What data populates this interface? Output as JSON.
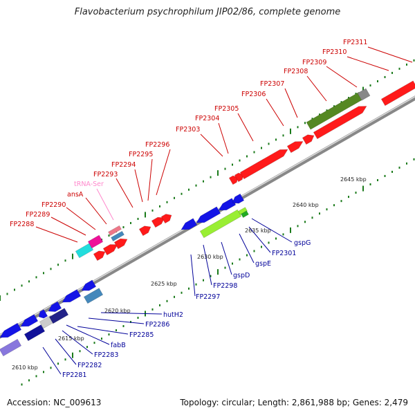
{
  "title": "Flavobacterium psychrophilum JIP02/86, complete genome",
  "footer": {
    "accession": "Accession: NC_009613",
    "summary": "Topology: circular; Length: 2,861,988 bp; Genes: 2,479"
  },
  "colors": {
    "top_strand": "#ff1a1a",
    "bottom_strand": "#1414e6",
    "backbone": "#999999",
    "tick": "#1a7a1a",
    "trna": "#ff88cc",
    "label_top": "#cc0000",
    "label_bottom": "#000099"
  },
  "scale_labels": [
    "2610 kbp",
    "2615 kbp",
    "2620 kbp",
    "2625 kbp",
    "2630 kbp",
    "2635 kbp",
    "2640 kbp",
    "2645 kbp"
  ],
  "top_labels": [
    {
      "text": "FP2288",
      "color": "#cc0000"
    },
    {
      "text": "FP2289",
      "color": "#cc0000"
    },
    {
      "text": "FP2290",
      "color": "#cc0000"
    },
    {
      "text": "ansA",
      "color": "#cc0000"
    },
    {
      "text": "tRNA-Ser",
      "color": "#ff88cc"
    },
    {
      "text": "FP2293",
      "color": "#cc0000"
    },
    {
      "text": "FP2294",
      "color": "#cc0000"
    },
    {
      "text": "FP2295",
      "color": "#cc0000"
    },
    {
      "text": "FP2296",
      "color": "#cc0000"
    },
    {
      "text": "FP2303",
      "color": "#cc0000"
    },
    {
      "text": "FP2304",
      "color": "#cc0000"
    },
    {
      "text": "FP2305",
      "color": "#cc0000"
    },
    {
      "text": "FP2306",
      "color": "#cc0000"
    },
    {
      "text": "FP2307",
      "color": "#cc0000"
    },
    {
      "text": "FP2308",
      "color": "#cc0000"
    },
    {
      "text": "FP2309",
      "color": "#cc0000"
    },
    {
      "text": "FP2310",
      "color": "#cc0000"
    },
    {
      "text": "FP2311",
      "color": "#cc0000"
    }
  ],
  "bottom_labels": [
    {
      "text": "FP2281"
    },
    {
      "text": "FP2282"
    },
    {
      "text": "FP2283"
    },
    {
      "text": "fabB"
    },
    {
      "text": "FP2285"
    },
    {
      "text": "FP2286"
    },
    {
      "text": "hutH2"
    },
    {
      "text": "FP2297"
    },
    {
      "text": "FP2298"
    },
    {
      "text": "gspD"
    },
    {
      "text": "gspE"
    },
    {
      "text": "FP2301"
    },
    {
      "text": "gspG"
    }
  ]
}
